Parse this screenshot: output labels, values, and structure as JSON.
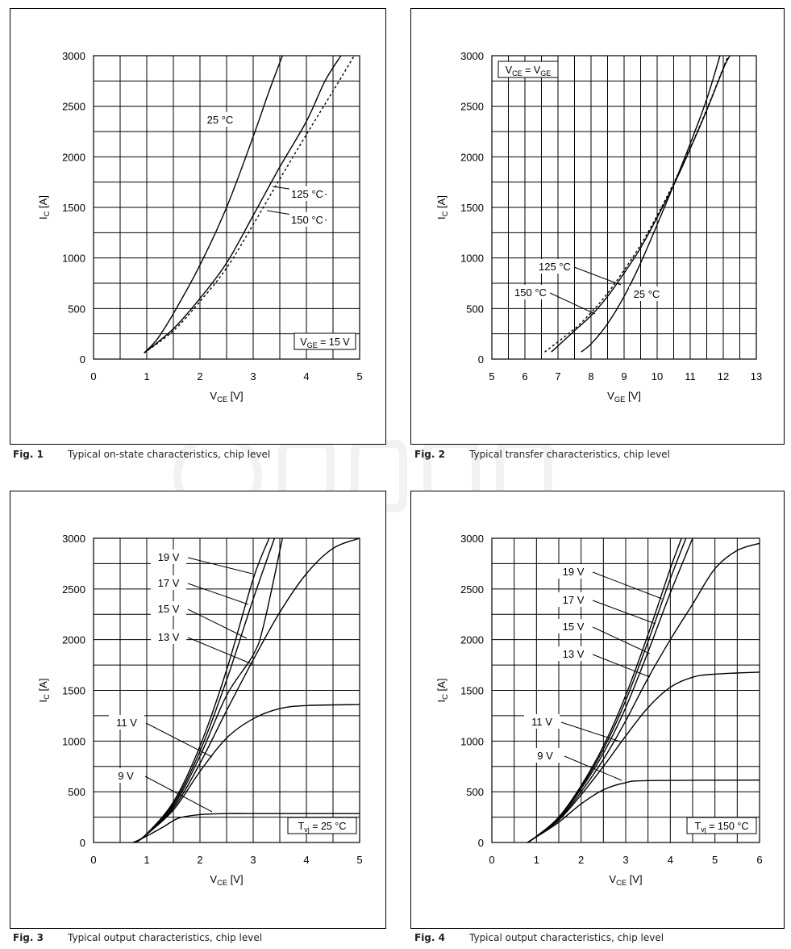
{
  "charts": [
    {
      "caption_num": "Fig. 1",
      "caption_text": "Typical on-state characteristics, chip level",
      "box_label_main": "V",
      "box_label_sub": "GE",
      "box_label_tail": " = 15 V"
    },
    {
      "caption_num": "Fig. 2",
      "caption_text": "Typical transfer characteristics, chip level",
      "box_label_main": "V",
      "box_label_sub": "CE",
      "box_label_tail": " = V",
      "box_label_sub2": "GE"
    },
    {
      "caption_num": "Fig. 3",
      "caption_text": "Typical output characteristics, chip level",
      "box_label_main": "T",
      "box_label_sub": "vj",
      "box_label_tail": " = 25 °C"
    },
    {
      "caption_num": "Fig. 4",
      "caption_text": "Typical output characteristics, chip level",
      "box_label_main": "T",
      "box_label_sub": "vj",
      "box_label_tail": " = 150 °C"
    }
  ],
  "chart_data": [
    {
      "type": "line",
      "xlabel_main": "V",
      "xlabel_sub": "CE",
      "xlabel_tail": " [V]",
      "ylabel_main": "I",
      "ylabel_sub": "C",
      "ylabel_tail": " [A]",
      "xlim": [
        0,
        5
      ],
      "ylim": [
        0,
        3000
      ],
      "xticks": [
        0,
        1,
        2,
        3,
        4,
        5
      ],
      "yticks": [
        0,
        500,
        1000,
        1500,
        2000,
        2500,
        3000
      ],
      "grid": true,
      "series": [
        {
          "name": "25 °C",
          "style": "solid",
          "points": [
            [
              0.95,
              60
            ],
            [
              1.2,
              200
            ],
            [
              1.5,
              450
            ],
            [
              2.0,
              930
            ],
            [
              2.5,
              1500
            ],
            [
              3.0,
              2200
            ],
            [
              3.3,
              2650
            ],
            [
              3.55,
              3000
            ]
          ]
        },
        {
          "name": "125 °C",
          "style": "solid",
          "points": [
            [
              0.95,
              60
            ],
            [
              1.5,
              300
            ],
            [
              2.0,
              600
            ],
            [
              2.5,
              950
            ],
            [
              3.0,
              1420
            ],
            [
              3.5,
              1900
            ],
            [
              4.0,
              2350
            ],
            [
              4.35,
              2750
            ],
            [
              4.65,
              3000
            ]
          ]
        },
        {
          "name": "150 °C",
          "style": "dashed",
          "points": [
            [
              0.95,
              60
            ],
            [
              1.5,
              280
            ],
            [
              2.0,
              570
            ],
            [
              2.5,
              900
            ],
            [
              3.0,
              1330
            ],
            [
              3.5,
              1780
            ],
            [
              4.0,
              2220
            ],
            [
              4.5,
              2650
            ],
            [
              4.9,
              3000
            ]
          ]
        }
      ]
    },
    {
      "type": "line",
      "xlabel_main": "V",
      "xlabel_sub": "GE",
      "xlabel_tail": " [V]",
      "ylabel_main": "I",
      "ylabel_sub": "C",
      "ylabel_tail": " [A]",
      "xlim": [
        5,
        13
      ],
      "ylim": [
        0,
        3000
      ],
      "xticks": [
        5,
        6,
        7,
        8,
        9,
        10,
        11,
        12,
        13
      ],
      "yticks": [
        0,
        500,
        1000,
        1500,
        2000,
        2500,
        3000
      ],
      "grid": true,
      "series": [
        {
          "name": "25 °C",
          "style": "solid",
          "points": [
            [
              7.7,
              70
            ],
            [
              8.0,
              150
            ],
            [
              8.5,
              350
            ],
            [
              9.0,
              620
            ],
            [
              9.5,
              950
            ],
            [
              10.0,
              1330
            ],
            [
              10.5,
              1720
            ],
            [
              11.0,
              2130
            ],
            [
              11.5,
              2570
            ],
            [
              11.9,
              3000
            ]
          ]
        },
        {
          "name": "125 °C",
          "style": "solid",
          "points": [
            [
              6.8,
              70
            ],
            [
              7.5,
              280
            ],
            [
              8.0,
              430
            ],
            [
              8.5,
              620
            ],
            [
              9.0,
              850
            ],
            [
              9.5,
              1100
            ],
            [
              10.0,
              1400
            ],
            [
              10.5,
              1720
            ],
            [
              11.0,
              2080
            ],
            [
              11.5,
              2460
            ],
            [
              12.0,
              2870
            ],
            [
              12.2,
              3000
            ]
          ]
        },
        {
          "name": "150 °C",
          "style": "dashed",
          "points": [
            [
              6.6,
              70
            ],
            [
              7.5,
              300
            ],
            [
              8.0,
              460
            ],
            [
              8.5,
              650
            ],
            [
              9.0,
              880
            ],
            [
              9.5,
              1130
            ],
            [
              10.0,
              1420
            ],
            [
              10.5,
              1740
            ],
            [
              11.0,
              2090
            ],
            [
              11.5,
              2470
            ],
            [
              12.0,
              2880
            ],
            [
              12.15,
              3000
            ]
          ]
        }
      ]
    },
    {
      "type": "line",
      "xlabel_main": "V",
      "xlabel_sub": "CE",
      "xlabel_tail": " [V]",
      "ylabel_main": "I",
      "ylabel_sub": "C",
      "ylabel_tail": " [A]",
      "xlim": [
        0,
        5
      ],
      "ylim": [
        0,
        3000
      ],
      "xticks": [
        0,
        1,
        2,
        3,
        4,
        5
      ],
      "yticks": [
        0,
        500,
        1000,
        1500,
        2000,
        2500,
        3000
      ],
      "grid": true,
      "series": [
        {
          "name": "19 V",
          "style": "solid",
          "points": [
            [
              0.75,
              0
            ],
            [
              0.95,
              60
            ],
            [
              1.5,
              400
            ],
            [
              2.0,
              950
            ],
            [
              2.5,
              1700
            ],
            [
              3.0,
              2600
            ],
            [
              3.3,
              3000
            ]
          ]
        },
        {
          "name": "17 V",
          "style": "solid",
          "points": [
            [
              0.75,
              0
            ],
            [
              0.95,
              60
            ],
            [
              1.5,
              380
            ],
            [
              2.0,
              900
            ],
            [
              2.5,
              1600
            ],
            [
              3.0,
              2400
            ],
            [
              3.4,
              3000
            ]
          ]
        },
        {
          "name": "15 V",
          "style": "solid",
          "points": [
            [
              0.75,
              0
            ],
            [
              0.95,
              60
            ],
            [
              1.5,
              360
            ],
            [
              2.0,
              850
            ],
            [
              2.5,
              1450
            ],
            [
              3.0,
              1850
            ],
            [
              3.2,
              2150
            ],
            [
              3.55,
              3000
            ]
          ]
        },
        {
          "name": "13 V",
          "style": "solid",
          "points": [
            [
              0.75,
              0
            ],
            [
              0.95,
              60
            ],
            [
              1.5,
              340
            ],
            [
              2.0,
              780
            ],
            [
              2.5,
              1300
            ],
            [
              3.0,
              1800
            ],
            [
              3.5,
              2270
            ],
            [
              4.0,
              2650
            ],
            [
              4.5,
              2900
            ],
            [
              5.0,
              3000
            ]
          ]
        },
        {
          "name": "11 V",
          "style": "solid",
          "points": [
            [
              0.75,
              0
            ],
            [
              0.95,
              60
            ],
            [
              1.5,
              320
            ],
            [
              2.0,
              700
            ],
            [
              2.5,
              1030
            ],
            [
              3.0,
              1220
            ],
            [
              3.5,
              1320
            ],
            [
              4.0,
              1350
            ],
            [
              5.0,
              1360
            ]
          ]
        },
        {
          "name": "9 V",
          "style": "solid",
          "points": [
            [
              0.75,
              0
            ],
            [
              0.95,
              50
            ],
            [
              1.3,
              150
            ],
            [
              1.6,
              240
            ],
            [
              2.0,
              275
            ],
            [
              2.5,
              285
            ],
            [
              3.0,
              285
            ],
            [
              5.0,
              285
            ]
          ]
        }
      ]
    },
    {
      "type": "line",
      "xlabel_main": "V",
      "xlabel_sub": "CE",
      "xlabel_tail": " [V]",
      "ylabel_main": "I",
      "ylabel_sub": "C",
      "ylabel_tail": " [A]",
      "xlim": [
        0,
        6
      ],
      "ylim": [
        0,
        3000
      ],
      "xticks": [
        0,
        1,
        2,
        3,
        4,
        5,
        6
      ],
      "yticks": [
        0,
        500,
        1000,
        1500,
        2000,
        2500,
        3000
      ],
      "grid": true,
      "series": [
        {
          "name": "19 V",
          "style": "solid",
          "points": [
            [
              0.8,
              0
            ],
            [
              1.0,
              60
            ],
            [
              1.5,
              250
            ],
            [
              2.0,
              560
            ],
            [
              2.5,
              950
            ],
            [
              3.0,
              1450
            ],
            [
              3.5,
              2050
            ],
            [
              4.0,
              2700
            ],
            [
              4.25,
              3000
            ]
          ]
        },
        {
          "name": "17 V",
          "style": "solid",
          "points": [
            [
              0.8,
              0
            ],
            [
              1.0,
              60
            ],
            [
              1.5,
              245
            ],
            [
              2.0,
              545
            ],
            [
              2.5,
              920
            ],
            [
              3.0,
              1400
            ],
            [
              3.5,
              1980
            ],
            [
              4.0,
              2600
            ],
            [
              4.35,
              3000
            ]
          ]
        },
        {
          "name": "15 V",
          "style": "solid",
          "points": [
            [
              0.8,
              0
            ],
            [
              1.0,
              60
            ],
            [
              1.5,
              240
            ],
            [
              2.0,
              530
            ],
            [
              2.5,
              880
            ],
            [
              3.0,
              1330
            ],
            [
              3.5,
              1880
            ],
            [
              4.0,
              2460
            ],
            [
              4.5,
              3000
            ]
          ]
        },
        {
          "name": "13 V",
          "style": "solid",
          "points": [
            [
              0.8,
              0
            ],
            [
              1.0,
              60
            ],
            [
              1.5,
              230
            ],
            [
              2.0,
              500
            ],
            [
              2.5,
              820
            ],
            [
              3.0,
              1200
            ],
            [
              3.5,
              1620
            ],
            [
              4.0,
              2000
            ],
            [
              4.5,
              2350
            ],
            [
              5.0,
              2700
            ],
            [
              5.5,
              2880
            ],
            [
              6.0,
              2950
            ]
          ]
        },
        {
          "name": "11 V",
          "style": "solid",
          "points": [
            [
              0.8,
              0
            ],
            [
              1.0,
              60
            ],
            [
              1.5,
              220
            ],
            [
              2.0,
              470
            ],
            [
              2.5,
              750
            ],
            [
              3.0,
              1050
            ],
            [
              3.5,
              1330
            ],
            [
              4.0,
              1530
            ],
            [
              4.5,
              1630
            ],
            [
              5.0,
              1660
            ],
            [
              6.0,
              1680
            ]
          ]
        },
        {
          "name": "9 V",
          "style": "solid",
          "points": [
            [
              0.8,
              0
            ],
            [
              1.0,
              55
            ],
            [
              1.5,
              200
            ],
            [
              2.0,
              380
            ],
            [
              2.5,
              520
            ],
            [
              3.0,
              590
            ],
            [
              3.5,
              610
            ],
            [
              6.0,
              615
            ]
          ]
        }
      ]
    }
  ]
}
